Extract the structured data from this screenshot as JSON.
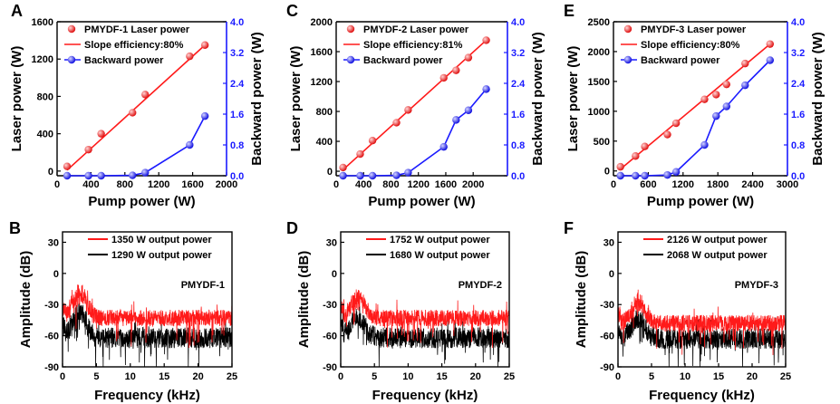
{
  "chart_data": [
    {
      "panel": "A",
      "type": "scatter",
      "xlabel": "Pump power (W)",
      "ylabel": "Laser power (W)",
      "y2label": "Backward power (W)",
      "xlim": [
        0,
        2000
      ],
      "xticks": [
        0,
        400,
        800,
        1200,
        1600,
        2000
      ],
      "ylim": [
        -50,
        1600
      ],
      "yticks": [
        0,
        400,
        800,
        1200,
        1600
      ],
      "y2lim": [
        0,
        4.0
      ],
      "y2ticks": [
        "0.0",
        "0.8",
        "1.6",
        "2.4",
        "3.2",
        "4.0"
      ],
      "legend": [
        "PMYDF-1 Laser power",
        "Slope efficiency:80%",
        "Backward power"
      ],
      "series": [
        {
          "name": "PMYDF-1 Laser power",
          "axis": "left",
          "color": "#ff2020",
          "x": [
            118,
            370,
            520,
            890,
            1040,
            1565,
            1745
          ],
          "y": [
            50,
            230,
            400,
            625,
            820,
            1230,
            1350
          ]
        },
        {
          "name": "Backward power",
          "axis": "right",
          "color": "#1a1aff",
          "x": [
            118,
            370,
            520,
            890,
            1040,
            1565,
            1745
          ],
          "y": [
            0.0,
            0.0,
            0.0,
            0.01,
            0.08,
            0.8,
            1.55
          ]
        }
      ],
      "fit": {
        "x": [
          118,
          1745
        ],
        "y": [
          10,
          1350
        ]
      }
    },
    {
      "panel": "C",
      "type": "scatter",
      "xlabel": "Pump power (W)",
      "ylabel": "Laser power (W)",
      "y2label": "Backward power (W)",
      "xlim": [
        0,
        2500
      ],
      "xticks": [
        0,
        400,
        800,
        1200,
        1600,
        2000
      ],
      "ylim": [
        -60,
        2000
      ],
      "yticks": [
        0,
        400,
        800,
        1200,
        1600,
        2000
      ],
      "y2lim": [
        0,
        4.0
      ],
      "y2ticks": [
        "0.0",
        "0.8",
        "1.6",
        "2.4",
        "3.2",
        "4.0"
      ],
      "legend": [
        "PMYDF-2 Laser power",
        "Slope efficiency:81%",
        "Backward power"
      ],
      "series": [
        {
          "name": "PMYDF-2 Laser power",
          "axis": "left",
          "color": "#ff2020",
          "x": [
            100,
            350,
            530,
            880,
            1050,
            1570,
            1750,
            1930,
            2190
          ],
          "y": [
            50,
            230,
            410,
            650,
            820,
            1250,
            1350,
            1520,
            1752
          ]
        },
        {
          "name": "Backward power",
          "axis": "right",
          "color": "#1a1aff",
          "x": [
            100,
            350,
            530,
            880,
            1050,
            1570,
            1750,
            1930,
            2190
          ],
          "y": [
            0.0,
            0.0,
            0.0,
            0.01,
            0.08,
            0.75,
            1.45,
            1.7,
            2.25
          ]
        }
      ],
      "fit": {
        "x": [
          100,
          2190
        ],
        "y": [
          20,
          1752
        ]
      }
    },
    {
      "panel": "E",
      "type": "scatter",
      "xlabel": "Pump power (W)",
      "ylabel": "Laser power (W)",
      "y2label": "Backward power (W)",
      "xlim": [
        0,
        3000
      ],
      "xticks": [
        0,
        600,
        1200,
        1800,
        2400,
        3000
      ],
      "ylim": [
        -80,
        2500
      ],
      "yticks": [
        0,
        500,
        1000,
        1500,
        2000,
        2500
      ],
      "y2lim": [
        0,
        4.0
      ],
      "y2ticks": [
        "0.0",
        "0.8",
        "1.6",
        "2.4",
        "3.2",
        "4.0"
      ],
      "legend": [
        "PMYDF-3 Laser power",
        "Slope efficiency:80%",
        "Backward power"
      ],
      "series": [
        {
          "name": "PMYDF-3 Laser power",
          "axis": "left",
          "color": "#ff2020",
          "x": [
            120,
            380,
            540,
            930,
            1080,
            1570,
            1770,
            1950,
            2270,
            2700
          ],
          "y": [
            70,
            250,
            410,
            610,
            800,
            1200,
            1280,
            1450,
            1800,
            2126
          ]
        },
        {
          "name": "Backward power",
          "axis": "right",
          "color": "#1a1aff",
          "x": [
            120,
            380,
            540,
            930,
            1080,
            1570,
            1770,
            1950,
            2270,
            2700
          ],
          "y": [
            0.0,
            0.0,
            0.0,
            0.02,
            0.1,
            0.8,
            1.55,
            1.8,
            2.35,
            3.0
          ]
        }
      ],
      "fit": {
        "x": [
          120,
          2700
        ],
        "y": [
          30,
          2126
        ]
      }
    },
    {
      "panel": "B",
      "type": "line",
      "xlabel": "Frequency (kHz)",
      "ylabel": "Amplitude (dB)",
      "xlim": [
        0,
        25
      ],
      "xticks": [
        0,
        5,
        10,
        15,
        20,
        25
      ],
      "ylim": [
        -90,
        40
      ],
      "yticks": [
        -90,
        -60,
        -30,
        0,
        30
      ],
      "sample": "PMYDF-1",
      "series": [
        {
          "name": "1350 W output power",
          "color": "#ff1a1a",
          "peak_x": 2.5,
          "peak_db": -15,
          "floor_db": -43
        },
        {
          "name": "1290 W output power",
          "color": "#000000",
          "peak_x": 2.5,
          "peak_db": -35,
          "floor_db": -62
        }
      ]
    },
    {
      "panel": "D",
      "type": "line",
      "xlabel": "Frequency (kHz)",
      "ylabel": "Amplitude (dB)",
      "xlim": [
        0,
        25
      ],
      "xticks": [
        0,
        5,
        10,
        15,
        20,
        25
      ],
      "ylim": [
        -90,
        40
      ],
      "yticks": [
        -90,
        -60,
        -30,
        0,
        30
      ],
      "sample": "PMYDF-2",
      "series": [
        {
          "name": "1752 W output power",
          "color": "#ff1a1a",
          "peak_x": 2.5,
          "peak_db": -20,
          "floor_db": -43
        },
        {
          "name": "1680 W output power",
          "color": "#000000",
          "peak_x": 2.5,
          "peak_db": -38,
          "floor_db": -62
        }
      ]
    },
    {
      "panel": "F",
      "type": "line",
      "xlabel": "Frequency (kHz)",
      "ylabel": "Amplitude (dB)",
      "xlim": [
        0,
        25
      ],
      "xticks": [
        0,
        5,
        10,
        15,
        20,
        25
      ],
      "ylim": [
        -90,
        40
      ],
      "yticks": [
        -90,
        -60,
        -30,
        0,
        30
      ],
      "sample": "PMYDF-3",
      "series": [
        {
          "name": "2126 W output power",
          "color": "#ff1a1a",
          "peak_x": 3.0,
          "peak_db": -25,
          "floor_db": -48
        },
        {
          "name": "2068 W output power",
          "color": "#000000",
          "peak_x": 3.0,
          "peak_db": -40,
          "floor_db": -63
        }
      ]
    }
  ]
}
